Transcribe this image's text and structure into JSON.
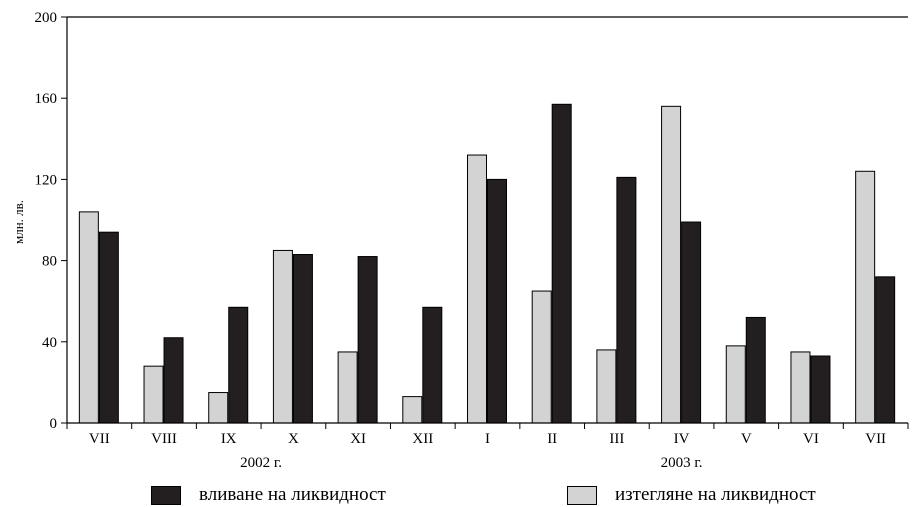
{
  "chart_data": {
    "type": "bar",
    "ylabel": "млн. лв.",
    "ylim": [
      0,
      200
    ],
    "yticks": [
      "0",
      "40",
      "80",
      "120",
      "160",
      "200"
    ],
    "categories": [
      "VII",
      "VIII",
      "IX",
      "X",
      "XI",
      "XII",
      "I",
      "II",
      "III",
      "IV",
      "V",
      "VI",
      "VII"
    ],
    "year_groups": [
      {
        "label": "2002 г.",
        "from": 0,
        "to": 5
      },
      {
        "label": "2003 г.",
        "from": 6,
        "to": 12
      }
    ],
    "series": [
      {
        "name": "изтегляне на ликвидност",
        "color": "#d3d3d3",
        "values": [
          104,
          28,
          15,
          85,
          35,
          13,
          132,
          65,
          36,
          156,
          38,
          35,
          124
        ]
      },
      {
        "name": "вливане на ликвидност",
        "color": "#231f20",
        "values": [
          94,
          42,
          57,
          83,
          82,
          57,
          120,
          157,
          121,
          99,
          52,
          33,
          72
        ]
      }
    ],
    "grid": false,
    "legend_position": "bottom"
  }
}
